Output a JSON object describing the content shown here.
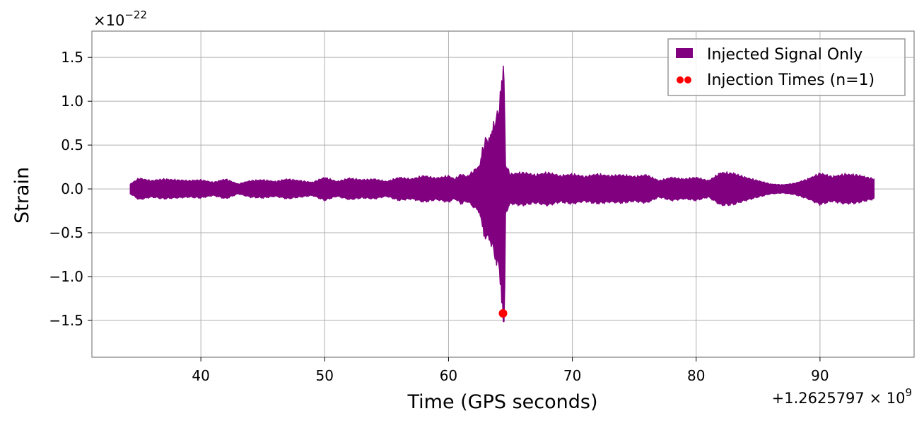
{
  "chart_data": {
    "type": "line",
    "xlabel": "Time (GPS seconds)",
    "ylabel": "Strain",
    "x_offset_label": "+1.2625797 × 10^9",
    "y_scale_label": "×10^−22",
    "xlim": [
      31.2,
      97.6
    ],
    "ylim": [
      -1.92,
      1.8
    ],
    "x_ticks": [
      40,
      50,
      60,
      70,
      80,
      90
    ],
    "y_ticks": [
      -1.5,
      -1.0,
      -0.5,
      0.0,
      0.5,
      1.0,
      1.5
    ],
    "grid": true,
    "legend_position": "top-right",
    "series": [
      {
        "name": "Injected Signal Only",
        "kind": "band",
        "color": "#800080",
        "x_start": 34.3,
        "x_end": 94.4,
        "envelope": [
          [
            34.3,
            0.06
          ],
          [
            35.0,
            0.13
          ],
          [
            36.0,
            0.1
          ],
          [
            37.0,
            0.12
          ],
          [
            38.0,
            0.11
          ],
          [
            39.0,
            0.1
          ],
          [
            40.0,
            0.11
          ],
          [
            41.0,
            0.08
          ],
          [
            42.0,
            0.12
          ],
          [
            43.0,
            0.06
          ],
          [
            44.0,
            0.1
          ],
          [
            45.0,
            0.11
          ],
          [
            46.0,
            0.09
          ],
          [
            47.0,
            0.12
          ],
          [
            48.0,
            0.1
          ],
          [
            49.0,
            0.08
          ],
          [
            50.0,
            0.14
          ],
          [
            51.0,
            0.09
          ],
          [
            52.0,
            0.13
          ],
          [
            53.0,
            0.11
          ],
          [
            54.0,
            0.12
          ],
          [
            55.0,
            0.09
          ],
          [
            56.0,
            0.14
          ],
          [
            57.0,
            0.12
          ],
          [
            58.0,
            0.16
          ],
          [
            59.0,
            0.13
          ],
          [
            60.0,
            0.16
          ],
          [
            60.5,
            0.12
          ],
          [
            61.0,
            0.18
          ],
          [
            61.5,
            0.15
          ],
          [
            62.0,
            0.22
          ],
          [
            62.5,
            0.28
          ],
          [
            62.7,
            0.45
          ],
          [
            63.0,
            0.62
          ],
          [
            63.3,
            0.6
          ],
          [
            63.5,
            0.72
          ],
          [
            63.8,
            0.85
          ],
          [
            64.0,
            0.95
          ],
          [
            64.2,
            1.15
          ],
          [
            64.35,
            1.4
          ],
          [
            64.45,
            1.62
          ],
          [
            64.6,
            0.3
          ],
          [
            65.0,
            0.18
          ],
          [
            66.0,
            0.2
          ],
          [
            67.0,
            0.17
          ],
          [
            68.0,
            0.2
          ],
          [
            69.0,
            0.16
          ],
          [
            70.0,
            0.18
          ],
          [
            71.0,
            0.15
          ],
          [
            72.0,
            0.18
          ],
          [
            73.0,
            0.16
          ],
          [
            74.0,
            0.17
          ],
          [
            75.0,
            0.15
          ],
          [
            76.0,
            0.17
          ],
          [
            77.0,
            0.1
          ],
          [
            78.0,
            0.14
          ],
          [
            79.0,
            0.12
          ],
          [
            80.0,
            0.14
          ],
          [
            81.0,
            0.1
          ],
          [
            82.0,
            0.2
          ],
          [
            83.0,
            0.19
          ],
          [
            84.0,
            0.14
          ],
          [
            85.0,
            0.1
          ],
          [
            86.0,
            0.06
          ],
          [
            87.0,
            0.05
          ],
          [
            88.0,
            0.07
          ],
          [
            89.0,
            0.12
          ],
          [
            90.0,
            0.19
          ],
          [
            91.0,
            0.15
          ],
          [
            92.0,
            0.18
          ],
          [
            93.0,
            0.17
          ],
          [
            94.4,
            0.12
          ]
        ]
      },
      {
        "name": "Injection Times (n=1)",
        "kind": "scatter",
        "color": "#ff0000",
        "points": [
          [
            64.4,
            -1.42
          ]
        ]
      }
    ]
  },
  "legend": {
    "signal_label": "Injected Signal Only",
    "injection_label": "Injection Times (n=1)"
  }
}
